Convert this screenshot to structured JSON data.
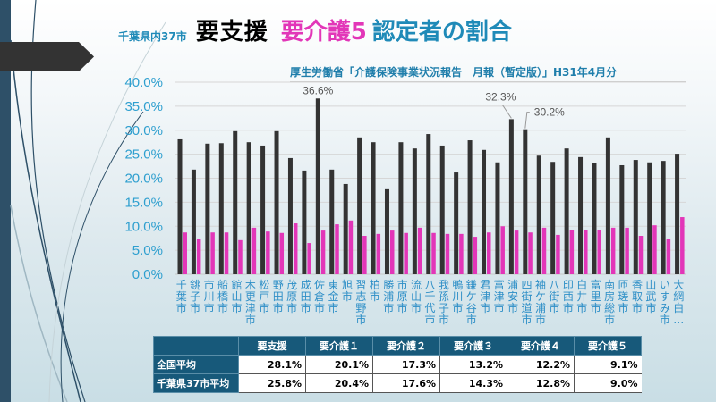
{
  "title": {
    "prefix": "千葉県内37市",
    "main_black": "要支援",
    "main_pink": "要介護5",
    "main_blue": "認定者の割合"
  },
  "source": "厚生労働省「介護保険事業状況報告　月報（暫定版）」H31年4月分",
  "colors": {
    "series_support": "#333333",
    "series_care5": "#e236b8",
    "title_blue": "#1f8ab8",
    "table_header": "#17597a"
  },
  "chart_data": {
    "type": "bar",
    "title": "千葉県内37市 要支援 要介護5 認定者の割合",
    "xlabel": "",
    "ylabel": "",
    "ylim": [
      0,
      40
    ],
    "yticks": [
      "0.0%",
      "5.0%",
      "10.0%",
      "15.0%",
      "20.0%",
      "25.0%",
      "30.0%",
      "35.0%",
      "40.0%"
    ],
    "grid": true,
    "legend": "none",
    "categories": [
      "千葉市",
      "銚子市",
      "市川市",
      "船橋市",
      "館山市",
      "木更津市",
      "松戸市",
      "野田市",
      "茂原市",
      "成田市",
      "佐倉市",
      "東金市",
      "旭市",
      "習志野市",
      "柏市",
      "勝浦市",
      "市原市",
      "流山市",
      "八千代市",
      "我孫子市",
      "鴨川市",
      "鎌ケ谷市",
      "君津市",
      "富津市",
      "浦安市",
      "四街道市",
      "袖ケ浦市",
      "八街市",
      "印西市",
      "白井市",
      "富里市",
      "南房総市",
      "匝瑳市",
      "香取市",
      "山武市",
      "いすみ市",
      "大網白…"
    ],
    "series": [
      {
        "name": "要支援",
        "values": [
          28.1,
          21.8,
          27.2,
          27.3,
          29.8,
          27.5,
          26.8,
          29.8,
          24.2,
          21.6,
          36.6,
          21.8,
          18.8,
          28.5,
          27.5,
          17.7,
          27.5,
          26.2,
          29.2,
          26.8,
          21.2,
          27.9,
          25.9,
          23.3,
          32.3,
          30.2,
          24.7,
          23.4,
          26.2,
          24.4,
          23.1,
          28.5,
          22.7,
          23.8,
          23.3,
          23.6,
          25.1
        ]
      },
      {
        "name": "要介護5",
        "values": [
          8.7,
          7.4,
          8.7,
          8.7,
          7.1,
          9.7,
          8.9,
          8.6,
          10.6,
          6.5,
          9.1,
          10.4,
          11.2,
          8.0,
          8.4,
          9.1,
          8.6,
          9.7,
          8.6,
          8.4,
          8.4,
          7.8,
          8.7,
          10.0,
          9.1,
          8.7,
          9.7,
          8.2,
          9.3,
          9.3,
          9.3,
          9.7,
          9.7,
          8.0,
          10.2,
          7.3,
          11.9
        ]
      }
    ],
    "annotations": [
      {
        "category": "佐倉市",
        "series": "要支援",
        "text": "36.6%"
      },
      {
        "category": "浦安市",
        "series": "要支援",
        "text": "32.3%"
      },
      {
        "category": "四街道市",
        "series": "要支援",
        "text": "30.2%"
      }
    ]
  },
  "table": {
    "columns": [
      "",
      "要支援",
      "要介護１",
      "要介護２",
      "要介護３",
      "要介護４",
      "要介護５"
    ],
    "rows": [
      {
        "label": "全国平均",
        "values": [
          "28.1%",
          "20.1%",
          "17.3%",
          "13.2%",
          "12.2%",
          "9.1%"
        ]
      },
      {
        "label": "千葉県37市平均",
        "values": [
          "25.8%",
          "20.4%",
          "17.6%",
          "14.3%",
          "12.8%",
          "9.0%"
        ]
      }
    ]
  }
}
